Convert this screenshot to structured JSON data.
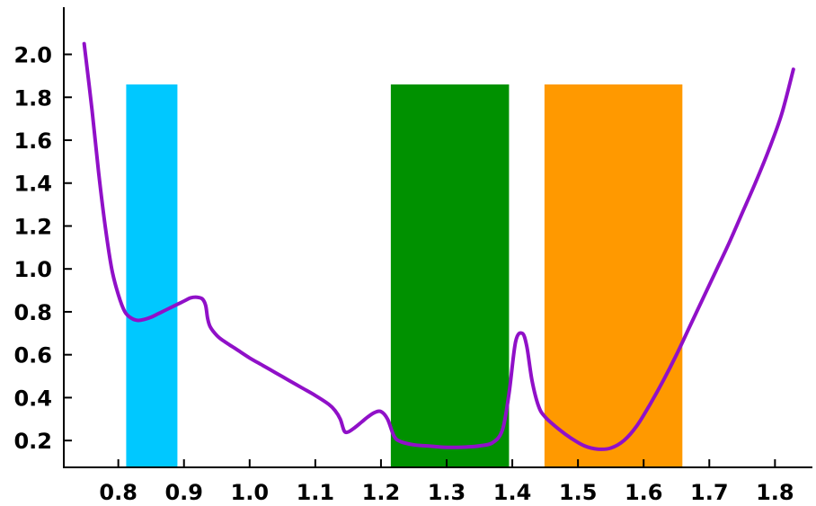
{
  "chart_data": {
    "type": "line",
    "title": "",
    "xlabel": "",
    "ylabel": "",
    "xlim": [
      0.717,
      1.857
    ],
    "ylim": [
      0.075,
      2.22
    ],
    "x_ticks": [
      0.8,
      0.9,
      1.0,
      1.1,
      1.2,
      1.3,
      1.4,
      1.5,
      1.6,
      1.7,
      1.8
    ],
    "x_tick_labels": [
      "0.8",
      "0.9",
      "1.0",
      "1.1",
      "1.2",
      "1.3",
      "1.4",
      "1.5",
      "1.6",
      "1.7",
      "1.8"
    ],
    "y_ticks": [
      0.2,
      0.4,
      0.6,
      0.8,
      1.0,
      1.2,
      1.4,
      1.6,
      1.8,
      2.0
    ],
    "y_tick_labels": [
      "0.2",
      "0.4",
      "0.6",
      "0.8",
      "1.0",
      "1.2",
      "1.4",
      "1.6",
      "1.8",
      "2.0"
    ],
    "grid": false,
    "legend": "none",
    "bands": [
      {
        "x0": 0.812,
        "x1": 0.89,
        "y_top": 1.86,
        "color": "#00c8ff"
      },
      {
        "x0": 1.215,
        "x1": 1.395,
        "y_top": 1.86,
        "color": "#009100"
      },
      {
        "x0": 1.449,
        "x1": 1.659,
        "y_top": 1.86,
        "color": "#ff9900"
      }
    ],
    "series": [
      {
        "color": "#9010c8",
        "points": [
          [
            0.748,
            2.05
          ],
          [
            0.76,
            1.74
          ],
          [
            0.77,
            1.45
          ],
          [
            0.78,
            1.2
          ],
          [
            0.79,
            1.0
          ],
          [
            0.8,
            0.88
          ],
          [
            0.81,
            0.8
          ],
          [
            0.82,
            0.77
          ],
          [
            0.83,
            0.76
          ],
          [
            0.84,
            0.765
          ],
          [
            0.85,
            0.775
          ],
          [
            0.86,
            0.79
          ],
          [
            0.87,
            0.805
          ],
          [
            0.88,
            0.82
          ],
          [
            0.89,
            0.835
          ],
          [
            0.9,
            0.85
          ],
          [
            0.91,
            0.865
          ],
          [
            0.92,
            0.868
          ],
          [
            0.928,
            0.86
          ],
          [
            0.933,
            0.83
          ],
          [
            0.936,
            0.77
          ],
          [
            0.94,
            0.73
          ],
          [
            0.95,
            0.69
          ],
          [
            0.96,
            0.665
          ],
          [
            0.98,
            0.625
          ],
          [
            1.0,
            0.585
          ],
          [
            1.02,
            0.55
          ],
          [
            1.04,
            0.515
          ],
          [
            1.06,
            0.48
          ],
          [
            1.08,
            0.445
          ],
          [
            1.1,
            0.41
          ],
          [
            1.12,
            0.37
          ],
          [
            1.13,
            0.34
          ],
          [
            1.138,
            0.3
          ],
          [
            1.144,
            0.245
          ],
          [
            1.15,
            0.24
          ],
          [
            1.16,
            0.26
          ],
          [
            1.17,
            0.285
          ],
          [
            1.18,
            0.31
          ],
          [
            1.19,
            0.33
          ],
          [
            1.2,
            0.335
          ],
          [
            1.21,
            0.3
          ],
          [
            1.22,
            0.22
          ],
          [
            1.23,
            0.195
          ],
          [
            1.25,
            0.18
          ],
          [
            1.27,
            0.175
          ],
          [
            1.29,
            0.17
          ],
          [
            1.31,
            0.168
          ],
          [
            1.33,
            0.17
          ],
          [
            1.35,
            0.175
          ],
          [
            1.37,
            0.19
          ],
          [
            1.385,
            0.25
          ],
          [
            1.395,
            0.42
          ],
          [
            1.405,
            0.66
          ],
          [
            1.415,
            0.7
          ],
          [
            1.422,
            0.64
          ],
          [
            1.43,
            0.48
          ],
          [
            1.44,
            0.36
          ],
          [
            1.45,
            0.31
          ],
          [
            1.47,
            0.255
          ],
          [
            1.49,
            0.21
          ],
          [
            1.51,
            0.175
          ],
          [
            1.53,
            0.16
          ],
          [
            1.55,
            0.165
          ],
          [
            1.57,
            0.2
          ],
          [
            1.59,
            0.27
          ],
          [
            1.61,
            0.37
          ],
          [
            1.63,
            0.48
          ],
          [
            1.65,
            0.6
          ],
          [
            1.67,
            0.73
          ],
          [
            1.69,
            0.86
          ],
          [
            1.71,
            0.99
          ],
          [
            1.73,
            1.12
          ],
          [
            1.75,
            1.26
          ],
          [
            1.77,
            1.4
          ],
          [
            1.79,
            1.55
          ],
          [
            1.81,
            1.72
          ],
          [
            1.828,
            1.93
          ]
        ]
      }
    ]
  }
}
